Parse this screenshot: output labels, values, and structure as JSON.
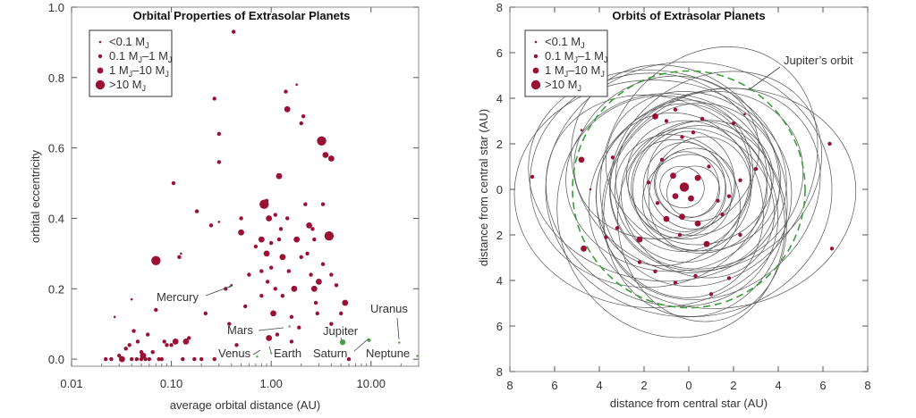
{
  "chart_data": [
    {
      "type": "scatter",
      "title": "Orbital Properties of Extrasolar Planets",
      "xlabel": "average orbital distance (AU)",
      "ylabel": "orbital  eccentricity",
      "xscale": "log",
      "xlim": [
        0.01,
        30
      ],
      "ylim": [
        -0.02,
        1.0
      ],
      "xticks": [
        "0.01",
        "0.10",
        "1.00",
        "10.00"
      ],
      "yticks": [
        "0.0",
        "0.2",
        "0.4",
        "0.6",
        "0.8",
        "1.0"
      ],
      "legend": {
        "placement": "top-left",
        "entries": [
          {
            "label": "<0.1 M",
            "sub": "J",
            "size": 0
          },
          {
            "label": "0.1 M",
            "sub": "J",
            "tail": "–1 M",
            "sub2": "J",
            "size": 1
          },
          {
            "label": "1 M",
            "sub": "J",
            "tail": "–10 M",
            "sub2": "J",
            "size": 2
          },
          {
            "label": ">10 M",
            "sub": "J",
            "size": 3
          }
        ]
      },
      "marker_color": "#9b1035",
      "solar_color": "#4aa04a",
      "points": [
        [
          0.022,
          0.0,
          1
        ],
        [
          0.025,
          0.0,
          1
        ],
        [
          0.027,
          0.12,
          0
        ],
        [
          0.03,
          0.01,
          1
        ],
        [
          0.032,
          0.0,
          2
        ],
        [
          0.035,
          0.03,
          1
        ],
        [
          0.038,
          0.04,
          1
        ],
        [
          0.04,
          0.0,
          1
        ],
        [
          0.04,
          0.17,
          0
        ],
        [
          0.042,
          0.08,
          1
        ],
        [
          0.045,
          0.0,
          1
        ],
        [
          0.046,
          0.05,
          1
        ],
        [
          0.05,
          0.02,
          1
        ],
        [
          0.05,
          0.0,
          1
        ],
        [
          0.052,
          0.01,
          2
        ],
        [
          0.055,
          0.0,
          1
        ],
        [
          0.058,
          0.07,
          1
        ],
        [
          0.06,
          0.0,
          1
        ],
        [
          0.065,
          0.02,
          1
        ],
        [
          0.07,
          0.14,
          1
        ],
        [
          0.07,
          0.28,
          3
        ],
        [
          0.075,
          0.0,
          1
        ],
        [
          0.08,
          0.0,
          1
        ],
        [
          0.085,
          0.05,
          1
        ],
        [
          0.09,
          0.04,
          1
        ],
        [
          0.1,
          0.04,
          1
        ],
        [
          0.105,
          0.5,
          1
        ],
        [
          0.11,
          0.05,
          2
        ],
        [
          0.12,
          0.29,
          1
        ],
        [
          0.125,
          0.3,
          0
        ],
        [
          0.13,
          0.0,
          1
        ],
        [
          0.14,
          0.05,
          2
        ],
        [
          0.15,
          0.06,
          1
        ],
        [
          0.17,
          0.0,
          1
        ],
        [
          0.18,
          0.42,
          1
        ],
        [
          0.2,
          0.0,
          1
        ],
        [
          0.22,
          0.13,
          1
        ],
        [
          0.25,
          0.38,
          1
        ],
        [
          0.27,
          0.0,
          1
        ],
        [
          0.27,
          0.74,
          1
        ],
        [
          0.3,
          0.64,
          1
        ],
        [
          0.3,
          0.56,
          1
        ],
        [
          0.3,
          0.39,
          0
        ],
        [
          0.35,
          0.2,
          1
        ],
        [
          0.38,
          0.1,
          1
        ],
        [
          0.4,
          0.21,
          0
        ],
        [
          0.42,
          0.93,
          1
        ],
        [
          0.45,
          0.04,
          1
        ],
        [
          0.5,
          0.4,
          1
        ],
        [
          0.5,
          0.36,
          2
        ],
        [
          0.55,
          0.15,
          1
        ],
        [
          0.6,
          0.24,
          1
        ],
        [
          0.7,
          0.32,
          1
        ],
        [
          0.8,
          0.34,
          2
        ],
        [
          0.8,
          0.25,
          1
        ],
        [
          0.8,
          0.18,
          1
        ],
        [
          0.85,
          0.44,
          3
        ],
        [
          0.9,
          0.45,
          1
        ],
        [
          0.9,
          0.3,
          2
        ],
        [
          0.92,
          0.22,
          1
        ],
        [
          0.95,
          0.4,
          2
        ],
        [
          0.95,
          0.06,
          2
        ],
        [
          1.0,
          0.33,
          1
        ],
        [
          1.0,
          0.26,
          1
        ],
        [
          1.05,
          0.13,
          2
        ],
        [
          1.1,
          0.41,
          1
        ],
        [
          1.1,
          0.2,
          1
        ],
        [
          1.15,
          0.07,
          1
        ],
        [
          1.2,
          0.52,
          2
        ],
        [
          1.2,
          0.34,
          1
        ],
        [
          1.25,
          0.37,
          1
        ],
        [
          1.3,
          0.18,
          1
        ],
        [
          1.3,
          0.29,
          2
        ],
        [
          1.4,
          0.76,
          1
        ],
        [
          1.45,
          0.71,
          2
        ],
        [
          1.45,
          0.4,
          1
        ],
        [
          1.5,
          0.25,
          1
        ],
        [
          1.6,
          0.05,
          1
        ],
        [
          1.6,
          0.12,
          1
        ],
        [
          1.7,
          0.2,
          2
        ],
        [
          1.8,
          0.78,
          0
        ],
        [
          1.8,
          0.34,
          2
        ],
        [
          1.9,
          0.09,
          1
        ],
        [
          2.0,
          0.29,
          1
        ],
        [
          2.0,
          0.67,
          1
        ],
        [
          2.1,
          0.69,
          1
        ],
        [
          2.2,
          0.44,
          1
        ],
        [
          2.3,
          0.3,
          1
        ],
        [
          2.4,
          0.38,
          2
        ],
        [
          2.5,
          0.24,
          1
        ],
        [
          2.6,
          0.37,
          1
        ],
        [
          2.7,
          0.2,
          2
        ],
        [
          2.7,
          0.34,
          1
        ],
        [
          2.8,
          0.16,
          1
        ],
        [
          2.9,
          0.13,
          1
        ],
        [
          3.0,
          0.22,
          2
        ],
        [
          3.2,
          0.62,
          3
        ],
        [
          3.3,
          0.44,
          1
        ],
        [
          3.3,
          0.27,
          1
        ],
        [
          3.5,
          0.58,
          2
        ],
        [
          3.8,
          0.35,
          3
        ],
        [
          4.0,
          0.57,
          2
        ],
        [
          4.0,
          0.1,
          1
        ],
        [
          4.0,
          0.24,
          1
        ],
        [
          4.5,
          0.21,
          1
        ],
        [
          5.0,
          0.13,
          1
        ],
        [
          5.5,
          0.16,
          2
        ],
        [
          6.0,
          0.0,
          1
        ]
      ],
      "solar_points": [
        {
          "name": "Mercury",
          "x": 0.387,
          "y": 0.206
        },
        {
          "name": "Venus",
          "x": 0.723,
          "y": 0.007
        },
        {
          "name": "Earth",
          "x": 1.0,
          "y": 0.017
        },
        {
          "name": "Mars",
          "x": 1.524,
          "y": 0.093
        },
        {
          "name": "Jupiter",
          "x": 5.2,
          "y": 0.048
        },
        {
          "name": "Saturn",
          "x": 9.54,
          "y": 0.054
        },
        {
          "name": "Uranus",
          "x": 19.19,
          "y": 0.047
        },
        {
          "name": "Neptune",
          "x": 30.07,
          "y": 0.009
        }
      ]
    },
    {
      "type": "scatter",
      "title": "Orbits of Extrasolar Planets",
      "xlabel": "distance from central star (AU)",
      "ylabel": "distance from central star (AU)",
      "xlim": [
        -8,
        8
      ],
      "ylim": [
        -8,
        8
      ],
      "xticks": [
        "8",
        "6",
        "4",
        "2",
        "0",
        "2",
        "4",
        "6",
        "8"
      ],
      "yticks": [
        "8",
        "6",
        "4",
        "2",
        "0",
        "2",
        "4",
        "6",
        "8"
      ],
      "legend": {
        "placement": "top-left",
        "entries": [
          {
            "label": "<0.1 M",
            "sub": "J",
            "size": 0
          },
          {
            "label": "0.1 M",
            "sub": "J",
            "tail": "–1 M",
            "sub2": "J",
            "size": 1
          },
          {
            "label": "1 M",
            "sub": "J",
            "tail": "–10 M",
            "sub2": "J",
            "size": 2
          },
          {
            "label": ">10 M",
            "sub": "J",
            "size": 3
          }
        ]
      },
      "annotation": "Jupiter’s orbit",
      "marker_color": "#9b1035",
      "jupiter_orbit_color": "#3a9e3a",
      "jupiter_orbit_radius": 5.2,
      "orbits": [
        [
          -0.3,
          0.1,
          1.0,
          0.9,
          20
        ],
        [
          0.2,
          -0.1,
          1.2,
          1.1,
          -30
        ],
        [
          -0.1,
          0.2,
          1.5,
          1.4,
          60
        ],
        [
          0.3,
          0.2,
          1.8,
          1.6,
          10
        ],
        [
          -0.2,
          -0.3,
          2.0,
          1.7,
          -45
        ],
        [
          0.1,
          0.4,
          2.2,
          1.9,
          80
        ],
        [
          -0.4,
          0.0,
          2.4,
          2.1,
          35
        ],
        [
          0.5,
          -0.2,
          2.6,
          2.2,
          -70
        ],
        [
          0.0,
          0.5,
          2.8,
          2.5,
          15
        ],
        [
          -0.5,
          -0.4,
          3.0,
          2.6,
          50
        ],
        [
          0.6,
          0.3,
          3.2,
          2.7,
          -15
        ],
        [
          -0.2,
          0.6,
          3.4,
          3.0,
          100
        ],
        [
          0.4,
          -0.6,
          3.6,
          3.1,
          40
        ],
        [
          -0.7,
          0.2,
          3.8,
          3.2,
          -55
        ],
        [
          0.2,
          0.8,
          4.0,
          3.4,
          25
        ],
        [
          -0.4,
          -0.7,
          4.2,
          3.6,
          70
        ],
        [
          0.8,
          0.4,
          4.4,
          3.8,
          -25
        ],
        [
          -0.9,
          0.3,
          4.6,
          3.9,
          5
        ],
        [
          0.3,
          -0.9,
          4.8,
          4.0,
          -80
        ],
        [
          -0.6,
          0.9,
          5.0,
          4.2,
          45
        ],
        [
          1.0,
          -0.2,
          5.2,
          4.3,
          -40
        ],
        [
          -1.2,
          -0.5,
          5.4,
          4.4,
          30
        ],
        [
          0.9,
          1.0,
          5.6,
          4.5,
          -60
        ],
        [
          -1.4,
          0.6,
          5.8,
          4.6,
          10
        ],
        [
          1.5,
          -0.4,
          6.0,
          4.8,
          -10
        ],
        [
          -0.8,
          -1.2,
          5.5,
          4.9,
          65
        ],
        [
          1.2,
          0.8,
          5.0,
          4.1,
          -35
        ],
        [
          -1.6,
          -0.2,
          6.2,
          5.0,
          0
        ],
        [
          0.6,
          -1.4,
          4.5,
          3.7,
          85
        ],
        [
          -1.0,
          1.4,
          4.2,
          3.5,
          -20
        ],
        [
          0.0,
          0.0,
          6.4,
          5.6,
          0
        ],
        [
          -1.8,
          0.4,
          5.3,
          4.7,
          -5
        ],
        [
          0.5,
          0.0,
          3.0,
          2.8,
          0
        ],
        [
          -0.2,
          0.1,
          2.0,
          1.8,
          90
        ]
      ],
      "points": [
        [
          -7.0,
          0.55,
          1
        ],
        [
          -4.8,
          1.3,
          2
        ],
        [
          -4.7,
          -2.6,
          2
        ],
        [
          -4.8,
          2.6,
          0
        ],
        [
          -3.2,
          -1.7,
          1
        ],
        [
          -3.4,
          1.4,
          1
        ],
        [
          -1.5,
          3.2,
          2
        ],
        [
          -1.0,
          3.0,
          1
        ],
        [
          -0.6,
          3.5,
          1
        ],
        [
          -0.3,
          2.3,
          1
        ],
        [
          0.2,
          2.5,
          1
        ],
        [
          0.6,
          3.1,
          1
        ],
        [
          2.5,
          3.3,
          0
        ],
        [
          2.0,
          2.9,
          1
        ],
        [
          3.0,
          0.9,
          1
        ],
        [
          2.3,
          0.4,
          1
        ],
        [
          1.8,
          -0.3,
          1
        ],
        [
          1.5,
          -1.1,
          1
        ],
        [
          2.3,
          -2.0,
          1
        ],
        [
          1.8,
          -3.9,
          1
        ],
        [
          1.0,
          -4.6,
          1
        ],
        [
          0.3,
          -3.8,
          1
        ],
        [
          -0.6,
          -4.1,
          1
        ],
        [
          -1.5,
          -3.6,
          1
        ],
        [
          -2.2,
          -3.2,
          1
        ],
        [
          -3.7,
          -2.1,
          1
        ],
        [
          -2.2,
          -2.2,
          2
        ],
        [
          -1.0,
          -1.3,
          2
        ],
        [
          -0.3,
          -1.2,
          2
        ],
        [
          0.4,
          -1.5,
          2
        ],
        [
          -0.6,
          -0.3,
          2
        ],
        [
          -0.2,
          0.1,
          3
        ],
        [
          0.1,
          -0.4,
          2
        ],
        [
          0.4,
          0.5,
          2
        ],
        [
          -0.7,
          0.6,
          2
        ],
        [
          0.9,
          1.0,
          1
        ],
        [
          -1.2,
          1.3,
          1
        ],
        [
          -1.4,
          -0.6,
          1
        ],
        [
          1.3,
          -0.5,
          1
        ],
        [
          0.8,
          -2.4,
          2
        ],
        [
          -0.4,
          -2.0,
          1
        ],
        [
          -1.8,
          0.3,
          1
        ],
        [
          6.3,
          2.0,
          1
        ],
        [
          6.4,
          -2.6,
          1
        ],
        [
          -4.4,
          0.0,
          0
        ]
      ]
    }
  ]
}
